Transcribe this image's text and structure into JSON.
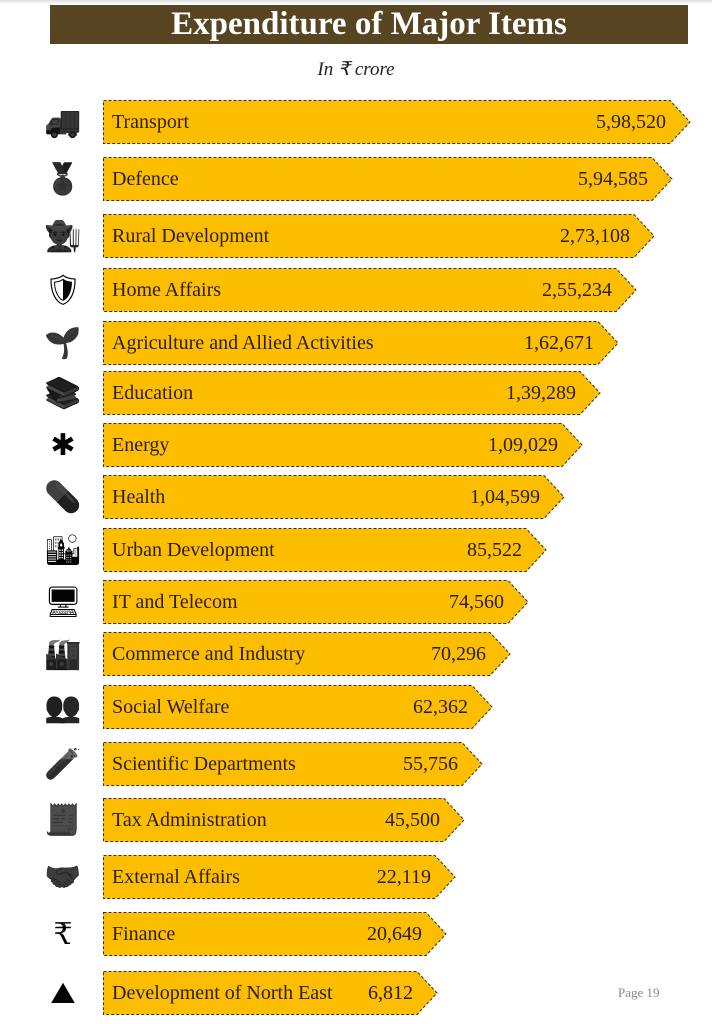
{
  "chart_data": {
    "type": "bar",
    "title": "Expenditure of Major Items",
    "subtitle": "In ₹ crore",
    "orientation": "horizontal",
    "categories": [
      "Transport",
      "Defence",
      "Rural Development",
      "Home Affairs",
      "Agriculture and Allied Activities",
      "Education",
      "Energy",
      "Health",
      "Urban Development",
      "IT and Telecom",
      "Commerce and Industry",
      "Social Welfare",
      "Scientific Departments",
      "Tax Administration",
      "External Affairs",
      "Finance",
      "Development of North East"
    ],
    "values": [
      598520,
      594585,
      273108,
      255234,
      162671,
      139289,
      109029,
      104599,
      85522,
      74560,
      70296,
      62362,
      55756,
      45500,
      22119,
      20649,
      6812
    ],
    "value_labels": [
      "5,98,520",
      "5,94,585",
      "2,73,108",
      "2,55,234",
      "1,62,671",
      "1,39,289",
      "1,09,029",
      "1,04,599",
      "85,522",
      "74,560",
      "70,296",
      "62,362",
      "55,756",
      "45,500",
      "22,119",
      "20,649",
      "6,812"
    ],
    "icons": [
      "truck-icon",
      "defence-medal-icon",
      "farmer-icon",
      "shield-person-icon",
      "agriculture-spraying-icon",
      "books-icon",
      "energy-network-icon",
      "medicine-icon",
      "city-buildings-icon",
      "cloud-computer-icon",
      "factory-icon",
      "people-group-icon",
      "beaker-icon",
      "tax-document-icon",
      "handshake-icon",
      "rupee-icon",
      "mountains-trees-icon"
    ],
    "bar_color": "#FDBE00",
    "title_bg": "#574420"
  },
  "page_label": "Page  19"
}
